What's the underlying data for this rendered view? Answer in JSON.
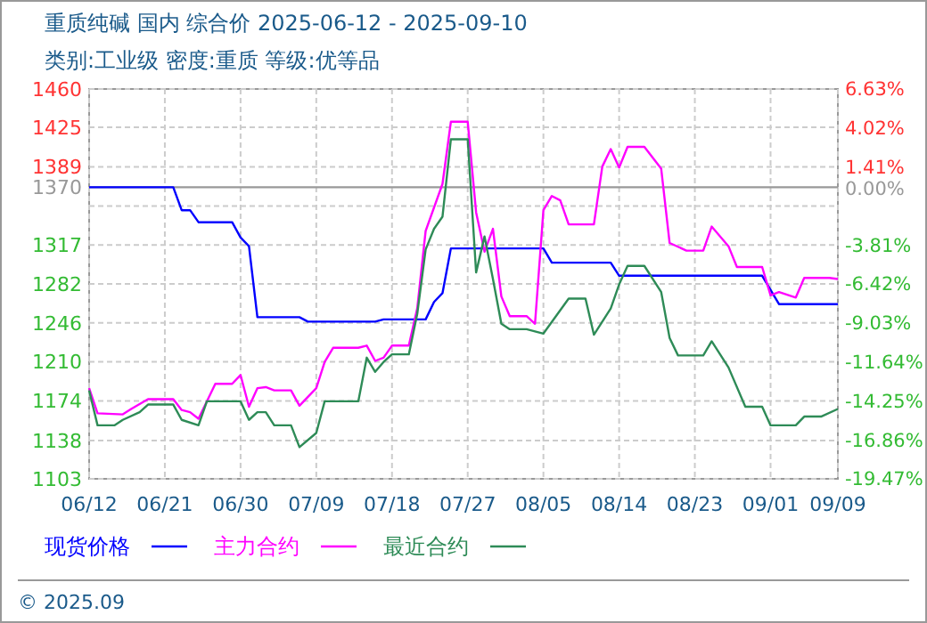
{
  "chart_data": {
    "type": "line",
    "title": "重质纯碱 国内 综合价 2025-06-12 - 2025-09-10",
    "subtitle": "类别:工业级 密度:重质 等级:优等品",
    "annotations": [
      "© 2025.09"
    ],
    "xlim": [
      "2025-06-12",
      "2025-09-09"
    ],
    "xticks": [
      {
        "value": "2025-06-12",
        "label": "06/12"
      },
      {
        "value": "2025-06-21",
        "label": "06/21"
      },
      {
        "value": "2025-06-30",
        "label": "06/30"
      },
      {
        "value": "2025-07-09",
        "label": "07/09"
      },
      {
        "value": "2025-07-18",
        "label": "07/18"
      },
      {
        "value": "2025-07-27",
        "label": "07/27"
      },
      {
        "value": "2025-08-05",
        "label": "08/05"
      },
      {
        "value": "2025-08-14",
        "label": "08/14"
      },
      {
        "value": "2025-08-23",
        "label": "08/23"
      },
      {
        "value": "2025-09-01",
        "label": "09/01"
      },
      {
        "value": "2025-09-09",
        "label": "09/09"
      }
    ],
    "ylim": [
      1103,
      1460
    ],
    "yticks": [
      1103,
      {
        "value": 1138,
        "label": "1138"
      },
      {
        "value": 1174.4,
        "label": "1174"
      },
      {
        "value": 1210.1,
        "label": "1210"
      },
      {
        "value": 1245.8,
        "label": "1246"
      },
      {
        "value": 1281.5,
        "label": "1282"
      },
      {
        "value": 1317.2,
        "label": "1317"
      },
      {
        "value": 1352.9,
        "label": null
      },
      1370,
      {
        "value": 1388.6,
        "label": "1389"
      },
      {
        "value": 1425,
        "label": "1425"
      },
      1460
    ],
    "y2lim": [
      -19.47,
      6.63
    ],
    "y2ticks": [
      {
        "value": -19.47,
        "label": "-19.47%"
      },
      {
        "value": -16.86,
        "label": "-16.86%"
      },
      {
        "value": -14.25,
        "label": "-14.25%"
      },
      {
        "value": -11.64,
        "label": "-11.64%"
      },
      {
        "value": -9.03,
        "label": "-9.03%"
      },
      {
        "value": -6.42,
        "label": "-6.42%"
      },
      {
        "value": -3.81,
        "label": "-3.81%"
      },
      {
        "value": 0,
        "label": "0.00%"
      },
      {
        "value": 1.41,
        "label": "1.41%"
      },
      {
        "value": 4.02,
        "label": "4.02%"
      },
      {
        "value": 6.63,
        "label": "6.63%"
      }
    ],
    "ref_lines": [
      {
        "axis": "y",
        "value": 1370,
        "color": "#999999"
      }
    ],
    "grid": true,
    "legend": "bottom",
    "series": [
      {
        "name": "现货价格",
        "color": "#0000ff",
        "x": [
          "2025-06-12",
          "2025-06-22",
          "2025-06-23",
          "2025-06-24",
          "2025-06-25",
          "2025-06-29",
          "2025-06-30",
          "2025-07-01",
          "2025-07-02",
          "2025-07-07",
          "2025-07-08",
          "2025-07-16",
          "2025-07-17",
          "2025-07-22",
          "2025-07-23",
          "2025-07-24",
          "2025-07-25",
          "2025-08-05",
          "2025-08-06",
          "2025-08-13",
          "2025-08-14",
          "2025-08-31",
          "2025-09-02",
          "2025-09-09"
        ],
        "values": [
          1370,
          1370,
          1349,
          1349,
          1338,
          1338,
          1324,
          1316,
          1251,
          1251,
          1247,
          1247,
          1249,
          1249,
          1265,
          1273,
          1314,
          1314,
          1301,
          1301,
          1289,
          1289,
          1263,
          1263
        ]
      },
      {
        "name": "主力合约",
        "color": "#ff00ff",
        "x": [
          "2025-06-12",
          "2025-06-13",
          "2025-06-16",
          "2025-06-17",
          "2025-06-19",
          "2025-06-22",
          "2025-06-23",
          "2025-06-24",
          "2025-06-25",
          "2025-06-27",
          "2025-06-29",
          "2025-06-30",
          "2025-07-01",
          "2025-07-02",
          "2025-07-03",
          "2025-07-04",
          "2025-07-06",
          "2025-07-07",
          "2025-07-09",
          "2025-07-10",
          "2025-07-11",
          "2025-07-14",
          "2025-07-15",
          "2025-07-16",
          "2025-07-17",
          "2025-07-18",
          "2025-07-20",
          "2025-07-21",
          "2025-07-22",
          "2025-07-24",
          "2025-07-25",
          "2025-07-27",
          "2025-07-28",
          "2025-07-29",
          "2025-07-30",
          "2025-07-31",
          "2025-08-01",
          "2025-08-03",
          "2025-08-04",
          "2025-08-05",
          "2025-08-06",
          "2025-08-07",
          "2025-08-08",
          "2025-08-11",
          "2025-08-12",
          "2025-08-13",
          "2025-08-14",
          "2025-08-15",
          "2025-08-17",
          "2025-08-19",
          "2025-08-20",
          "2025-08-22",
          "2025-08-24",
          "2025-08-25",
          "2025-08-27",
          "2025-08-28",
          "2025-08-31",
          "2025-09-01",
          "2025-09-02",
          "2025-09-04",
          "2025-09-05",
          "2025-09-08",
          "2025-09-09"
        ],
        "values": [
          1186,
          1163,
          1162,
          1167,
          1176,
          1176,
          1166,
          1164,
          1158,
          1190,
          1190,
          1198,
          1169,
          1186,
          1187,
          1184,
          1184,
          1170,
          1186,
          1210,
          1223,
          1223,
          1225,
          1211,
          1214,
          1225,
          1225,
          1259,
          1330,
          1373,
          1430,
          1430,
          1347,
          1311,
          1332,
          1270,
          1252,
          1252,
          1245,
          1349,
          1362,
          1358,
          1336,
          1336,
          1389,
          1405,
          1388,
          1407,
          1407,
          1387,
          1319,
          1312,
          1312,
          1334,
          1316,
          1297,
          1297,
          1271,
          1274,
          1269,
          1287,
          1287,
          1286
        ]
      },
      {
        "name": "最近合约",
        "color": "#2e8b57",
        "x": [
          "2025-06-12",
          "2025-06-13",
          "2025-06-15",
          "2025-06-16",
          "2025-06-18",
          "2025-06-19",
          "2025-06-22",
          "2025-06-23",
          "2025-06-25",
          "2025-06-26",
          "2025-06-30",
          "2025-07-01",
          "2025-07-02",
          "2025-07-03",
          "2025-07-04",
          "2025-07-06",
          "2025-07-07",
          "2025-07-09",
          "2025-07-10",
          "2025-07-14",
          "2025-07-15",
          "2025-07-16",
          "2025-07-17",
          "2025-07-18",
          "2025-07-20",
          "2025-07-21",
          "2025-07-22",
          "2025-07-23",
          "2025-07-24",
          "2025-07-25",
          "2025-07-27",
          "2025-07-28",
          "2025-07-29",
          "2025-07-30",
          "2025-07-31",
          "2025-08-01",
          "2025-08-03",
          "2025-08-05",
          "2025-08-08",
          "2025-08-10",
          "2025-08-11",
          "2025-08-13",
          "2025-08-14",
          "2025-08-15",
          "2025-08-17",
          "2025-08-19",
          "2025-08-20",
          "2025-08-21",
          "2025-08-24",
          "2025-08-25",
          "2025-08-27",
          "2025-08-29",
          "2025-08-31",
          "2025-09-01",
          "2025-09-04",
          "2025-09-05",
          "2025-09-07",
          "2025-09-09"
        ],
        "values": [
          1184,
          1152,
          1152,
          1157,
          1164,
          1171,
          1171,
          1157,
          1152,
          1174,
          1174,
          1157,
          1164,
          1164,
          1152,
          1152,
          1132,
          1145,
          1174,
          1174,
          1214,
          1201,
          1210,
          1217,
          1217,
          1254,
          1313,
          1332,
          1343,
          1414,
          1414,
          1292,
          1325,
          1286,
          1245,
          1240,
          1240,
          1236,
          1268,
          1268,
          1235,
          1259,
          1281,
          1298,
          1298,
          1274,
          1232,
          1216,
          1216,
          1229,
          1205,
          1169,
          1169,
          1152,
          1152,
          1160,
          1160,
          1167
        ]
      }
    ]
  }
}
